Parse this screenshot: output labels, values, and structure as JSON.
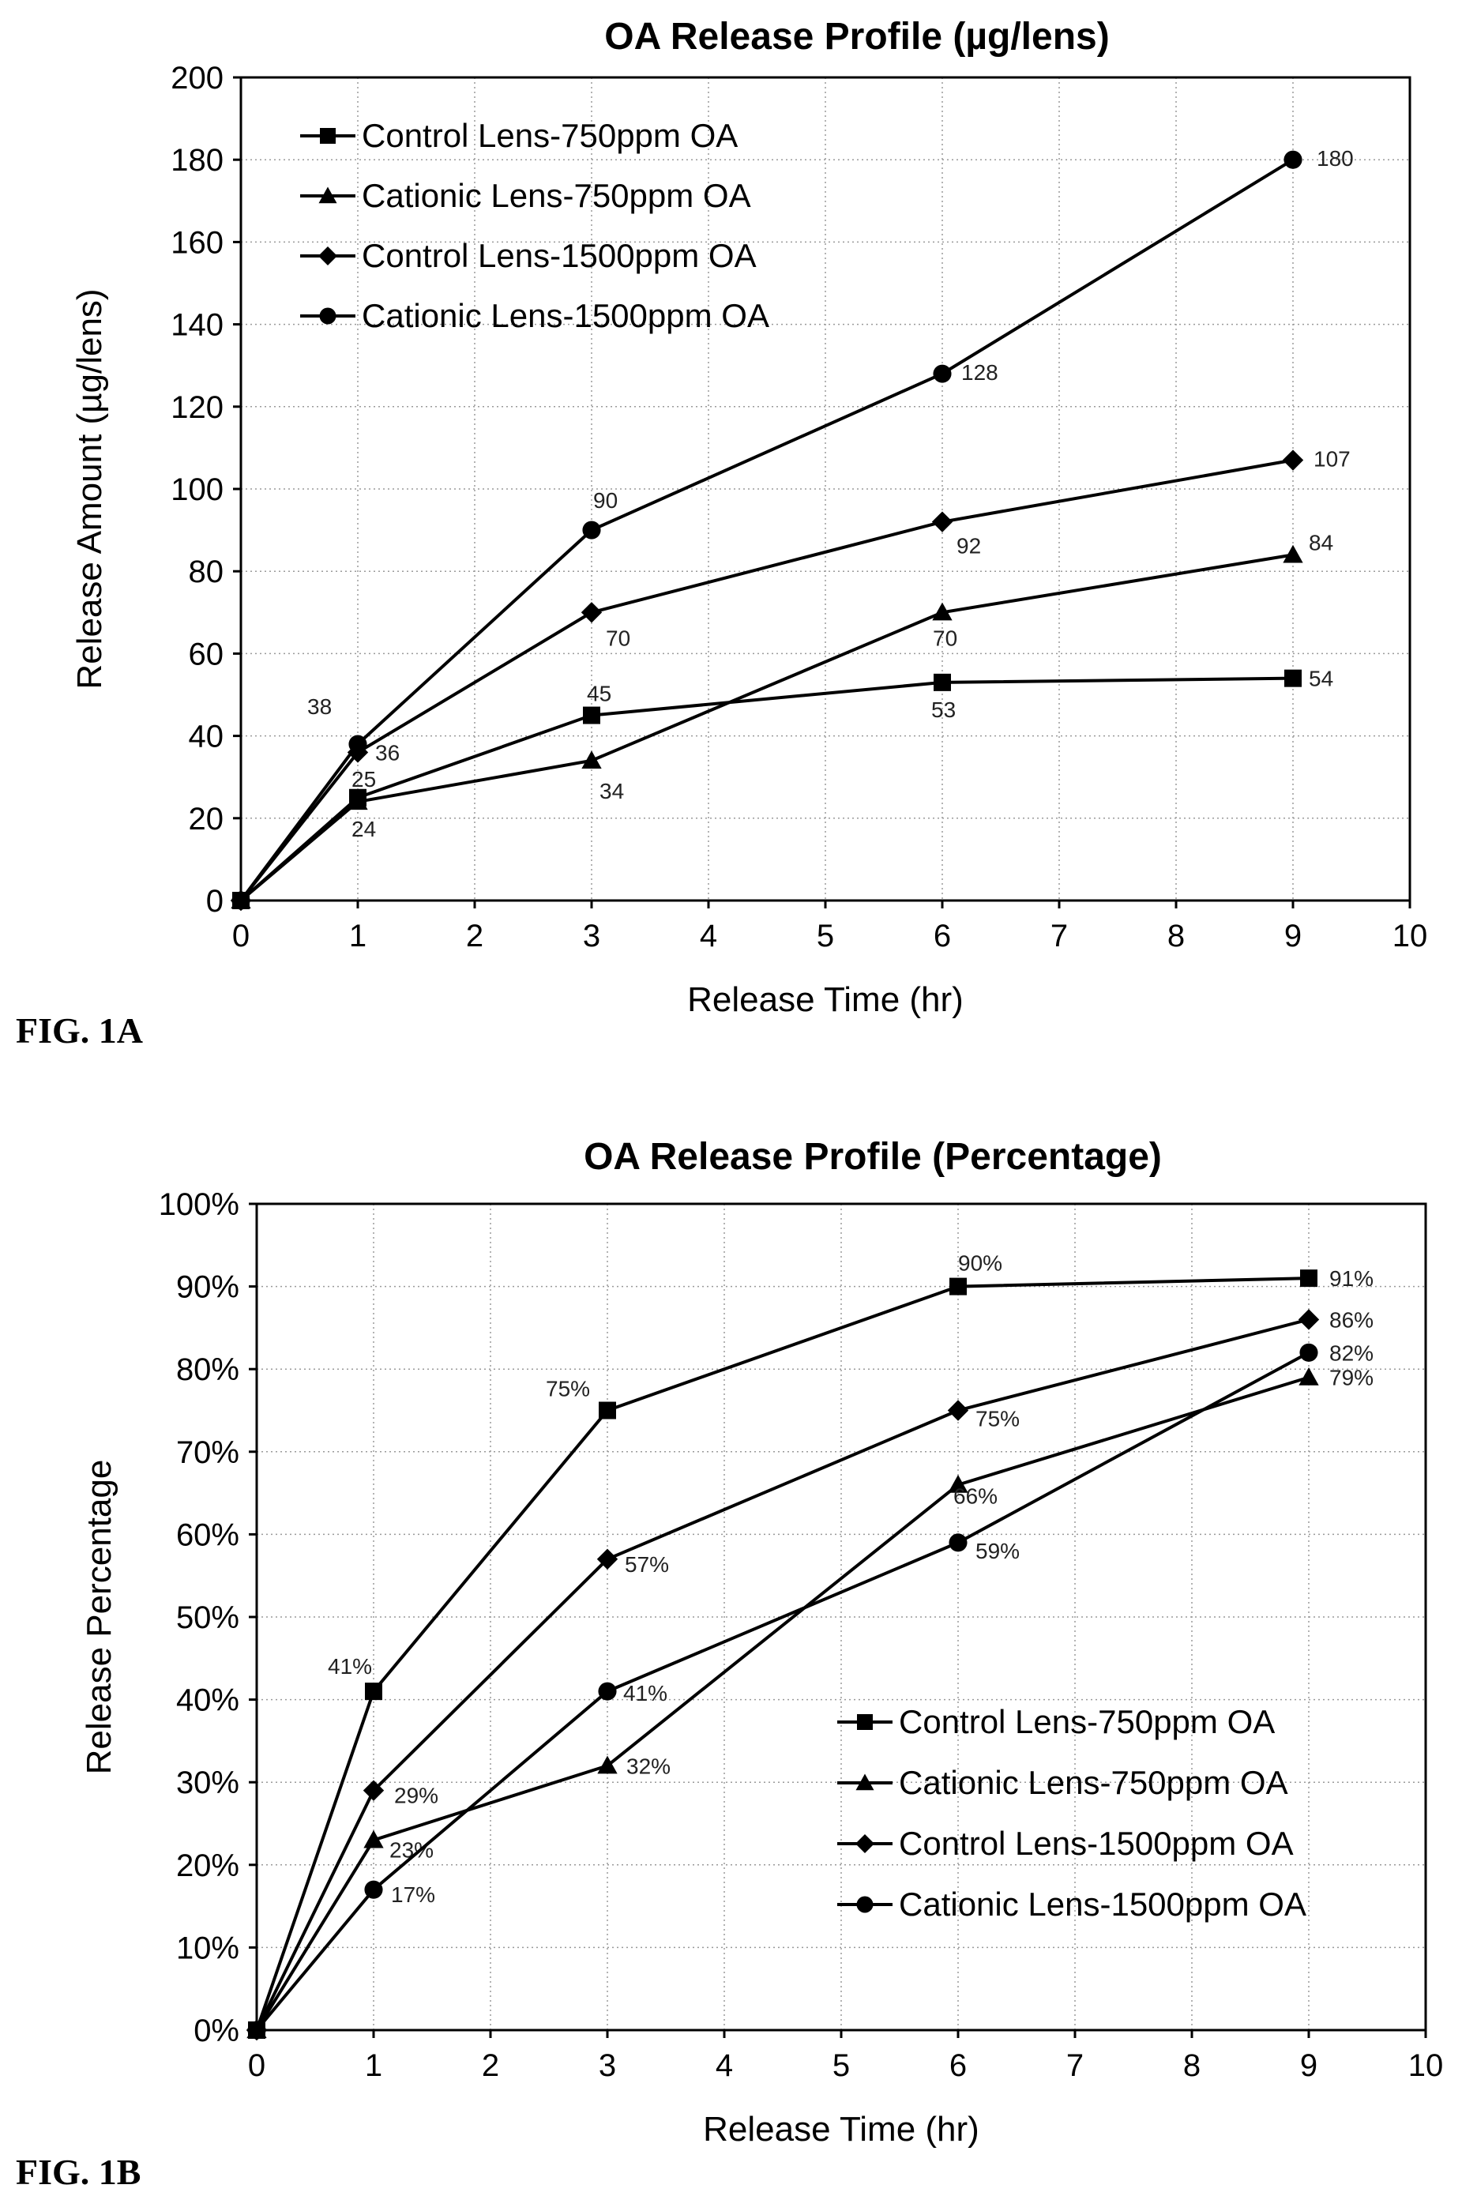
{
  "chart_data": [
    {
      "type": "line",
      "figure_label": "FIG. 1A",
      "title": "OA Release Profile (µg/lens)",
      "xlabel": "Release Time (hr)",
      "ylabel": "Release Amount (µg/lens)",
      "xlim": [
        0,
        10
      ],
      "ylim": [
        0,
        200
      ],
      "xticks": [
        "0",
        "1",
        "2",
        "3",
        "4",
        "5",
        "6",
        "7",
        "8",
        "9",
        "10"
      ],
      "yticks": [
        "0",
        "20",
        "40",
        "60",
        "80",
        "100",
        "120",
        "140",
        "160",
        "180",
        "200"
      ],
      "grid": true,
      "legend_position": "top-left",
      "series": [
        {
          "name": "Control Lens-750ppm OA",
          "marker": "square",
          "x": [
            0,
            1,
            3,
            6,
            9
          ],
          "y": [
            0,
            25,
            45,
            53,
            54
          ],
          "labels": [
            "",
            "25",
            "45",
            "53",
            "54"
          ]
        },
        {
          "name": "Cationic Lens-750ppm OA",
          "marker": "triangle",
          "x": [
            0,
            1,
            3,
            6,
            9
          ],
          "y": [
            0,
            24,
            34,
            70,
            84
          ],
          "labels": [
            "",
            "24",
            "34",
            "70",
            "84"
          ]
        },
        {
          "name": "Control Lens-1500ppm OA",
          "marker": "diamond",
          "x": [
            0,
            1,
            3,
            6,
            9
          ],
          "y": [
            0,
            36,
            70,
            92,
            107
          ],
          "labels": [
            "",
            "36",
            "70",
            "92",
            "107"
          ]
        },
        {
          "name": "Cationic Lens-1500ppm OA",
          "marker": "circle",
          "x": [
            0,
            1,
            3,
            6,
            9
          ],
          "y": [
            0,
            38,
            90,
            128,
            180
          ],
          "labels": [
            "",
            "38",
            "90",
            "128",
            "180"
          ]
        }
      ]
    },
    {
      "type": "line",
      "figure_label": "FIG. 1B",
      "title": "OA Release Profile (Percentage)",
      "xlabel": "Release Time (hr)",
      "ylabel": "Release Percentage",
      "xlim": [
        0,
        10
      ],
      "ylim": [
        0,
        100
      ],
      "xticks": [
        "0",
        "1",
        "2",
        "3",
        "4",
        "5",
        "6",
        "7",
        "8",
        "9",
        "10"
      ],
      "yticks": [
        "0%",
        "10%",
        "20%",
        "30%",
        "40%",
        "50%",
        "60%",
        "70%",
        "80%",
        "90%",
        "100%"
      ],
      "grid": true,
      "legend_position": "bottom-right",
      "series": [
        {
          "name": "Control Lens-750ppm OA",
          "marker": "square",
          "x": [
            0,
            1,
            3,
            6,
            9
          ],
          "y": [
            0,
            41,
            75,
            90,
            91
          ],
          "labels": [
            "",
            "41%",
            "75%",
            "90%",
            "91%"
          ]
        },
        {
          "name": "Cationic Lens-750ppm OA",
          "marker": "triangle",
          "x": [
            0,
            1,
            3,
            6,
            9
          ],
          "y": [
            0,
            23,
            32,
            66,
            79
          ],
          "labels": [
            "",
            "23%",
            "32%",
            "66%",
            "79%"
          ]
        },
        {
          "name": "Control Lens-1500ppm OA",
          "marker": "diamond",
          "x": [
            0,
            1,
            3,
            6,
            9
          ],
          "y": [
            0,
            29,
            57,
            75,
            86
          ],
          "labels": [
            "",
            "29%",
            "57%",
            "75%",
            "86%"
          ]
        },
        {
          "name": "Cationic Lens-1500ppm OA",
          "marker": "circle",
          "x": [
            0,
            1,
            3,
            6,
            9
          ],
          "y": [
            0,
            17,
            41,
            59,
            82
          ],
          "labels": [
            "",
            "17%",
            "41%",
            "59%",
            "82%"
          ]
        }
      ]
    }
  ]
}
